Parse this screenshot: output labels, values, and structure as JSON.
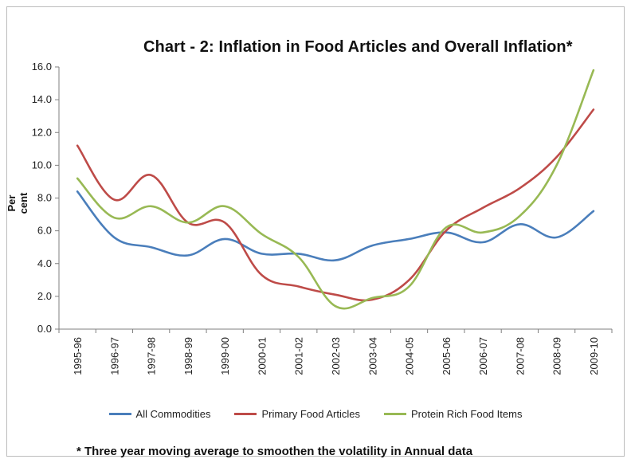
{
  "chart_data": {
    "type": "line",
    "title": "Chart - 2: Inflation in Food Articles and Overall Inflation*",
    "xlabel": "",
    "ylabel": "Per cent",
    "ylim": [
      0,
      16
    ],
    "yticks": [
      "0.0",
      "2.0",
      "4.0",
      "6.0",
      "8.0",
      "10.0",
      "12.0",
      "14.0",
      "16.0"
    ],
    "categories": [
      "1995-96",
      "1996-97",
      "1997-98",
      "1998-99",
      "1999-00",
      "2000-01",
      "2001-02",
      "2002-03",
      "2003-04",
      "2004-05",
      "2005-06",
      "2006-07",
      "2007-08",
      "2008-09",
      "2009-10"
    ],
    "grid": false,
    "legend_position": "bottom",
    "series": [
      {
        "name": "All Commodities",
        "color": "#4a7ebb",
        "values": [
          8.4,
          5.6,
          5.0,
          4.5,
          5.5,
          4.6,
          4.6,
          4.2,
          5.1,
          5.5,
          5.9,
          5.3,
          6.4,
          5.6,
          7.2
        ]
      },
      {
        "name": "Primary Food Articles",
        "color": "#be4b48",
        "values": [
          11.2,
          7.9,
          9.4,
          6.5,
          6.5,
          3.3,
          2.6,
          2.1,
          1.8,
          3.0,
          6.0,
          7.4,
          8.6,
          10.5,
          13.4
        ]
      },
      {
        "name": "Protein Rich Food Items",
        "color": "#98b954",
        "values": [
          9.2,
          6.8,
          7.5,
          6.5,
          7.5,
          5.8,
          4.4,
          1.4,
          1.9,
          2.6,
          6.2,
          5.9,
          6.9,
          10.0,
          15.8
        ]
      }
    ]
  },
  "footnote": "* Three year moving average to smoothen the volatility in Annual data"
}
